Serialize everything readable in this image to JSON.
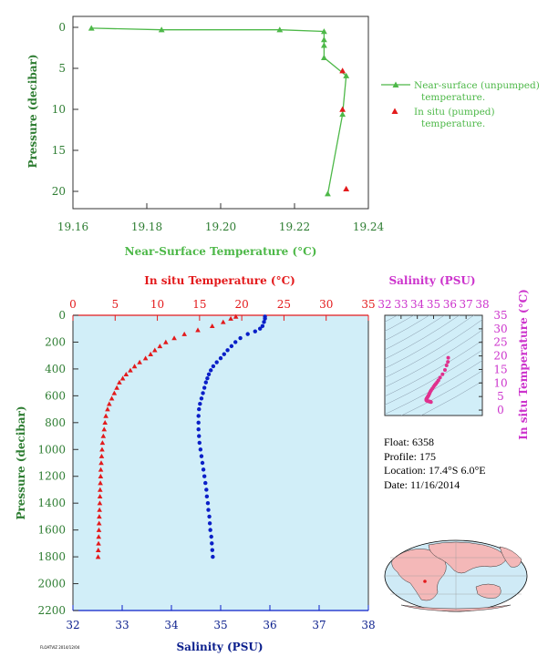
{
  "colors": {
    "green": "#4DB848",
    "green_dark": "#2E7D32",
    "red": "#E31A1C",
    "blue": "#0A1FC8",
    "navy": "#0A1E8C",
    "magenta": "#CC33CC",
    "pink": "#E0308E",
    "plot_bg": "#D1EEF8",
    "axis": "#333333"
  },
  "info": {
    "float": "Float:  6358",
    "profile": "Profile:  175",
    "location": "Location:  17.4°S   6.0°E",
    "date": "Date:  11/16/2014"
  },
  "credit": "FLOATVIZ 2014/12/04",
  "chart_data": [
    {
      "id": "near_surface",
      "type": "line",
      "xlabel": "Near-Surface Temperature (°C)",
      "ylabel": "Pressure (decibar)",
      "xlim": [
        19.16,
        19.24
      ],
      "ylim": [
        0,
        22
      ],
      "xticks": [
        19.16,
        19.18,
        19.2,
        19.22,
        19.24
      ],
      "xtick_labels": [
        "19.16",
        "19.18",
        "19.20",
        "19.22",
        "19.24"
      ],
      "yticks": [
        0,
        5,
        10,
        15,
        20
      ],
      "y_inverted": true,
      "series": [
        {
          "name": "Near-surface (unpumped) temperature.",
          "marker": "triangle",
          "points": [
            [
              19.165,
              0.1
            ],
            [
              19.184,
              0.3
            ],
            [
              19.216,
              0.3
            ],
            [
              19.228,
              0.5
            ],
            [
              19.228,
              1.5
            ],
            [
              19.228,
              2.2
            ],
            [
              19.228,
              3.7
            ],
            [
              19.234,
              5.9
            ],
            [
              19.233,
              10.6
            ],
            [
              19.229,
              20.3
            ]
          ]
        },
        {
          "name": "In situ (pumped) temperature.",
          "marker": "triangle",
          "points": [
            [
              19.233,
              5.3
            ],
            [
              19.233,
              10.0
            ],
            [
              19.234,
              19.7
            ]
          ]
        }
      ],
      "legend_lines": [
        [
          "Near-surface (unpumped)",
          "temperature."
        ],
        [
          "In situ (pumped)",
          "temperature."
        ]
      ],
      "legend_position": "right"
    },
    {
      "id": "profile",
      "type": "scatter",
      "ylabel": "Pressure (decibar)",
      "ylim": [
        0,
        2200
      ],
      "yticks": [
        0,
        200,
        400,
        600,
        800,
        1000,
        1200,
        1400,
        1600,
        1800,
        2000,
        2200
      ],
      "y_inverted": true,
      "top_axis": {
        "label": "In situ Temperature (°C)",
        "lim": [
          0,
          35
        ],
        "ticks": [
          0,
          5,
          10,
          15,
          20,
          25,
          30,
          35
        ]
      },
      "bottom_axis": {
        "label": "Salinity (PSU)",
        "lim": [
          32,
          38
        ],
        "ticks": [
          32,
          33,
          34,
          35,
          36,
          37,
          38
        ]
      },
      "series": [
        {
          "name": "In situ Temperature",
          "axis": "top",
          "marker": "triangle",
          "points": [
            [
              19.3,
              10
            ],
            [
              18.7,
              25
            ],
            [
              17.8,
              50
            ],
            [
              16.5,
              80
            ],
            [
              14.8,
              110
            ],
            [
              13.2,
              140
            ],
            [
              12.0,
              170
            ],
            [
              11.0,
              200
            ],
            [
              10.3,
              230
            ],
            [
              9.7,
              260
            ],
            [
              9.2,
              290
            ],
            [
              8.6,
              320
            ],
            [
              7.9,
              350
            ],
            [
              7.3,
              380
            ],
            [
              6.8,
              410
            ],
            [
              6.3,
              440
            ],
            [
              5.9,
              470
            ],
            [
              5.5,
              500
            ],
            [
              5.2,
              540
            ],
            [
              4.9,
              580
            ],
            [
              4.6,
              620
            ],
            [
              4.3,
              660
            ],
            [
              4.1,
              700
            ],
            [
              3.9,
              750
            ],
            [
              3.8,
              800
            ],
            [
              3.7,
              850
            ],
            [
              3.6,
              900
            ],
            [
              3.5,
              950
            ],
            [
              3.45,
              1000
            ],
            [
              3.4,
              1050
            ],
            [
              3.35,
              1100
            ],
            [
              3.3,
              1150
            ],
            [
              3.28,
              1200
            ],
            [
              3.25,
              1250
            ],
            [
              3.22,
              1300
            ],
            [
              3.2,
              1350
            ],
            [
              3.18,
              1400
            ],
            [
              3.15,
              1450
            ],
            [
              3.12,
              1500
            ],
            [
              3.1,
              1550
            ],
            [
              3.08,
              1600
            ],
            [
              3.05,
              1650
            ],
            [
              3.03,
              1700
            ],
            [
              3.0,
              1750
            ],
            [
              2.98,
              1800
            ]
          ]
        },
        {
          "name": "Salinity",
          "axis": "bottom",
          "marker": "circle",
          "points": [
            [
              35.9,
              10
            ],
            [
              35.9,
              25
            ],
            [
              35.88,
              50
            ],
            [
              35.85,
              80
            ],
            [
              35.8,
              100
            ],
            [
              35.7,
              120
            ],
            [
              35.55,
              140
            ],
            [
              35.4,
              170
            ],
            [
              35.3,
              200
            ],
            [
              35.22,
              230
            ],
            [
              35.14,
              260
            ],
            [
              35.07,
              290
            ],
            [
              35.0,
              320
            ],
            [
              34.92,
              350
            ],
            [
              34.85,
              380
            ],
            [
              34.8,
              410
            ],
            [
              34.76,
              440
            ],
            [
              34.73,
              470
            ],
            [
              34.7,
              500
            ],
            [
              34.67,
              540
            ],
            [
              34.64,
              580
            ],
            [
              34.61,
              620
            ],
            [
              34.58,
              660
            ],
            [
              34.56,
              700
            ],
            [
              34.55,
              750
            ],
            [
              34.55,
              800
            ],
            [
              34.55,
              850
            ],
            [
              34.56,
              900
            ],
            [
              34.57,
              950
            ],
            [
              34.59,
              1000
            ],
            [
              34.61,
              1050
            ],
            [
              34.63,
              1100
            ],
            [
              34.65,
              1150
            ],
            [
              34.67,
              1200
            ],
            [
              34.69,
              1250
            ],
            [
              34.71,
              1300
            ],
            [
              34.72,
              1350
            ],
            [
              34.74,
              1400
            ],
            [
              34.75,
              1450
            ],
            [
              34.77,
              1500
            ],
            [
              34.78,
              1550
            ],
            [
              34.79,
              1600
            ],
            [
              34.81,
              1650
            ],
            [
              34.82,
              1700
            ],
            [
              34.83,
              1750
            ],
            [
              34.84,
              1800
            ]
          ]
        }
      ]
    },
    {
      "id": "ts",
      "type": "scatter",
      "title": "Salinity (PSU)",
      "ylabel": "In situ Temperature (°C)",
      "xlim": [
        32,
        38
      ],
      "ylim": [
        -2,
        35
      ],
      "xticks": [
        32,
        33,
        34,
        35,
        36,
        37,
        38
      ],
      "yticks": [
        0,
        5,
        10,
        15,
        20,
        25,
        30,
        35
      ],
      "series": [
        {
          "name": "T-S",
          "marker": "circle",
          "points": [
            [
              35.9,
              19.3
            ],
            [
              35.88,
              17.8
            ],
            [
              35.8,
              16.5
            ],
            [
              35.7,
              14.8
            ],
            [
              35.55,
              13.2
            ],
            [
              35.4,
              12.0
            ],
            [
              35.3,
              11.0
            ],
            [
              35.22,
              10.3
            ],
            [
              35.14,
              9.7
            ],
            [
              35.07,
              9.2
            ],
            [
              35.0,
              8.6
            ],
            [
              34.92,
              7.9
            ],
            [
              34.85,
              7.3
            ],
            [
              34.8,
              6.8
            ],
            [
              34.76,
              6.3
            ],
            [
              34.73,
              5.9
            ],
            [
              34.7,
              5.5
            ],
            [
              34.67,
              5.2
            ],
            [
              34.64,
              4.9
            ],
            [
              34.61,
              4.6
            ],
            [
              34.58,
              4.3
            ],
            [
              34.56,
              4.1
            ],
            [
              34.55,
              3.9
            ],
            [
              34.55,
              3.8
            ],
            [
              34.56,
              3.6
            ],
            [
              34.59,
              3.45
            ],
            [
              34.63,
              3.35
            ],
            [
              34.67,
              3.28
            ],
            [
              34.71,
              3.22
            ],
            [
              34.74,
              3.18
            ],
            [
              34.77,
              3.12
            ],
            [
              34.79,
              3.08
            ],
            [
              34.82,
              3.03
            ],
            [
              34.84,
              2.98
            ]
          ]
        }
      ]
    }
  ]
}
